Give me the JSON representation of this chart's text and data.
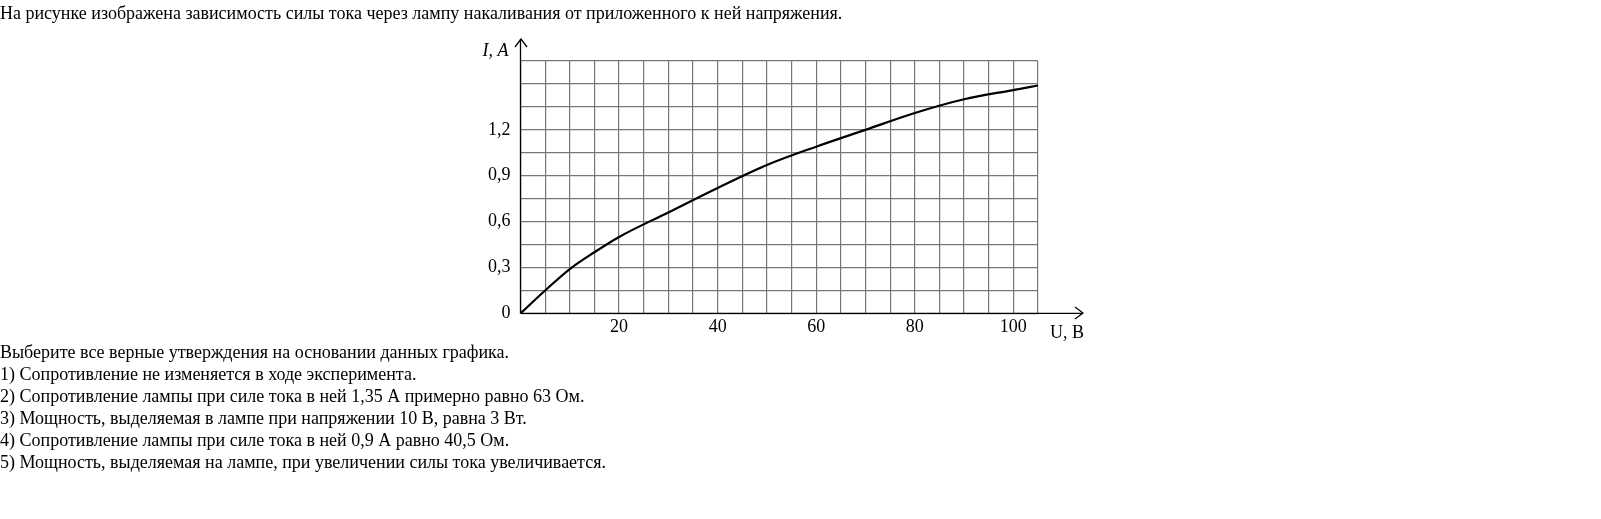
{
  "chart_data": {
    "type": "line",
    "title": "На рисунке изображена зависимость силы тока через лампу накаливания от приложенного к ней напряжения.",
    "xlabel": "U, В",
    "ylabel": "I, А",
    "x": [
      0,
      5,
      10,
      15,
      20,
      30,
      40,
      50,
      60,
      70,
      80,
      90,
      100,
      105
    ],
    "series": [
      {
        "color": "#000000",
        "values": [
          0,
          0.15,
          0.29,
          0.4,
          0.5,
          0.66,
          0.82,
          0.97,
          1.09,
          1.2,
          1.31,
          1.4,
          1.46,
          1.49
        ]
      }
    ],
    "xlim": [
      0,
      105
    ],
    "xticks": [
      {
        "value": 0,
        "label": null
      },
      {
        "value": 5,
        "label": null
      },
      {
        "value": 10,
        "label": null
      },
      {
        "value": 15,
        "label": null
      },
      20,
      {
        "value": 25,
        "label": null
      },
      {
        "value": 30,
        "label": null
      },
      {
        "value": 35,
        "label": null
      },
      40,
      {
        "value": 45,
        "label": null
      },
      {
        "value": 50,
        "label": null
      },
      {
        "value": 55,
        "label": null
      },
      60,
      {
        "value": 65,
        "label": null
      },
      {
        "value": 70,
        "label": null
      },
      {
        "value": 75,
        "label": null
      },
      80,
      {
        "value": 85,
        "label": null
      },
      {
        "value": 90,
        "label": null
      },
      {
        "value": 95,
        "label": null
      },
      100,
      {
        "value": 105,
        "label": null
      }
    ],
    "ylim": [
      0,
      1.65
    ],
    "yticks": [
      0,
      {
        "value": 0.15,
        "label": null
      },
      {
        "value": 0.3,
        "label": "0,3"
      },
      {
        "value": 0.45,
        "label": null
      },
      {
        "value": 0.6,
        "label": "0,6"
      },
      {
        "value": 0.75,
        "label": null
      },
      {
        "value": 0.9,
        "label": "0,9"
      },
      {
        "value": 1.05,
        "label": null
      },
      {
        "value": 1.2,
        "label": "1,2"
      },
      {
        "value": 1.35,
        "label": null
      },
      {
        "value": 1.5,
        "label": null
      },
      {
        "value": 1.65,
        "label": null
      }
    ],
    "grid": true,
    "legend": false,
    "marker": "none",
    "line_style": "solid",
    "annotations": [
      "Выберите все верные утверждения на основании данных графика.",
      "1) Сопротивление не изменяется в ходе эксперимента.",
      "2) Сопротивление лампы при силе тока в ней 1,35 А примерно равно 63 Ом.",
      "3) Мощность, выделяемая в лампе при напряжении 10 В, равна 3 Вт.",
      "4) Сопротивление лампы при силе тока в ней 0,9 А равно 40,5 Ом.",
      "5) Мощность, выделяемая на лампе, при увеличении силы тока увеличивается."
    ]
  }
}
